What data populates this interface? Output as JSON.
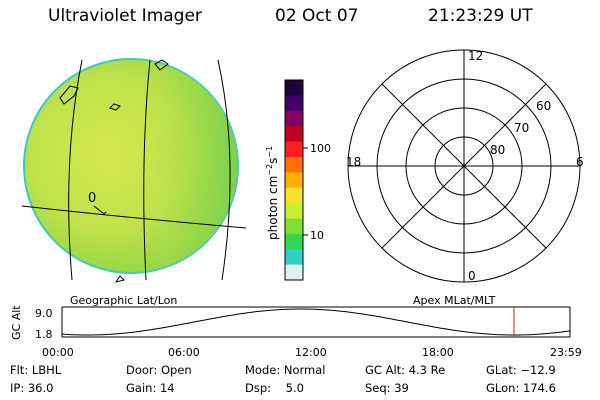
{
  "header": {
    "title": "Ultraviolet Imager",
    "date": "02 Oct 07",
    "time": "21:23:29 UT"
  },
  "colorbar": {
    "label": "photon cm",
    "label_exp1": "−2",
    "label_mid": "s",
    "label_exp2": "−1",
    "ticks": [
      "100",
      "10"
    ],
    "colors": [
      "#200040",
      "#40006a",
      "#880060",
      "#c00020",
      "#ff2020",
      "#ff7000",
      "#ffb000",
      "#f8e030",
      "#c8f030",
      "#80e030",
      "#30d850",
      "#30d0c8",
      "#e0f0f0"
    ]
  },
  "polar": {
    "labels": {
      "top": "12",
      "bottom": "0",
      "left": "18",
      "right": "6"
    },
    "lat_labels": [
      "60",
      "70",
      "80"
    ]
  },
  "image_label": "Geographic Lat/Lon",
  "polar_label": "Apex MLat/MLT",
  "image_marker": "0",
  "altplot": {
    "ylabel": "GC Alt",
    "yticks": [
      "9.0",
      "1.8"
    ],
    "xticks": [
      "00:00",
      "06:00",
      "12:00",
      "18:00",
      "23:59"
    ]
  },
  "footer": {
    "row1": [
      "Flt: LBHL",
      "Door: Open",
      "Mode: Normal",
      "GC Alt: 4.3 Re",
      "GLat: −12.9"
    ],
    "row2": [
      "IP: 36.0",
      "Gain: 14",
      "Dsp:    5.0",
      "Seq: 39",
      "GLon: 174.6"
    ]
  },
  "colors": {
    "earth_fill": "#b8e04a",
    "earth_fill_east": "#9cd448",
    "earth_rim": "#40c8c0",
    "time_marker": "#d02020"
  }
}
